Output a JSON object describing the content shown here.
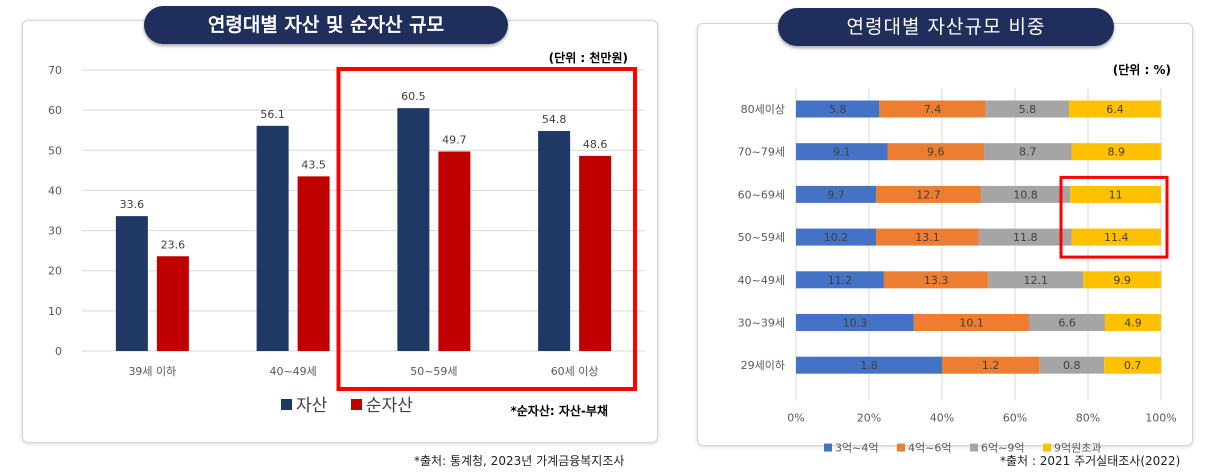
{
  "left": {
    "title": "연령대별 자산 및 순자산 규모",
    "unit": "(단위 : 천만원)",
    "footnote": "*순자산: 자산-부채",
    "source": "*출처: 통계청, 2023년 가계금융복지조사",
    "colors": {
      "asset": "#1f3864",
      "net": "#c00000",
      "highlight": "#ff0000"
    }
  },
  "right": {
    "title": "연령대별 자산규모 비중",
    "unit": "(단위 : %)",
    "source": "*출처 : 2021 주거실태조사(2022)",
    "colors": [
      "#4472c4",
      "#ed7d31",
      "#a5a5a5",
      "#ffc000"
    ],
    "highlight_color": "#ff0000"
  },
  "chart_data": [
    {
      "type": "bar",
      "categories": [
        "39세 이하",
        "40~49세",
        "50~59세",
        "60세 이상"
      ],
      "series": [
        {
          "name": "자산",
          "values": [
            33.6,
            56.1,
            60.5,
            54.8
          ]
        },
        {
          "name": "순자산",
          "values": [
            23.6,
            43.5,
            49.7,
            48.6
          ]
        }
      ],
      "yticks": [
        "0",
        "10",
        "20",
        "30",
        "40",
        "50",
        "60",
        "70"
      ],
      "ylim": [
        0,
        70
      ],
      "grid": true,
      "legend": "bottom-center",
      "highlight": [
        "50~59세",
        "60세 이상"
      ]
    },
    {
      "type": "bar",
      "orientation": "horizontal",
      "stacked": "percent",
      "categories": [
        "80세이상",
        "70~79세",
        "60~69세",
        "50~59세",
        "40~49세",
        "30~39세",
        "29세이하"
      ],
      "series": [
        {
          "name": "3억~4억",
          "values": [
            5.8,
            9.1,
            9.7,
            10.2,
            11.2,
            10.3,
            1.8
          ]
        },
        {
          "name": "4억~6억",
          "values": [
            7.4,
            9.6,
            12.7,
            13.1,
            13.3,
            10.1,
            1.2
          ]
        },
        {
          "name": "6억~9억",
          "values": [
            5.8,
            8.7,
            10.8,
            11.8,
            12.1,
            6.6,
            0.8
          ]
        },
        {
          "name": "9억원초과",
          "values": [
            6.4,
            8.9,
            11,
            11.4,
            9.9,
            4.9,
            0.7
          ]
        }
      ],
      "xticks": [
        "0%",
        "20%",
        "40%",
        "60%",
        "80%",
        "100%"
      ],
      "xlim": [
        0,
        100
      ],
      "grid": true,
      "legend": "bottom-center",
      "highlight": {
        "series": "9억원초과",
        "categories": [
          "60~69세",
          "50~59세"
        ]
      }
    }
  ]
}
